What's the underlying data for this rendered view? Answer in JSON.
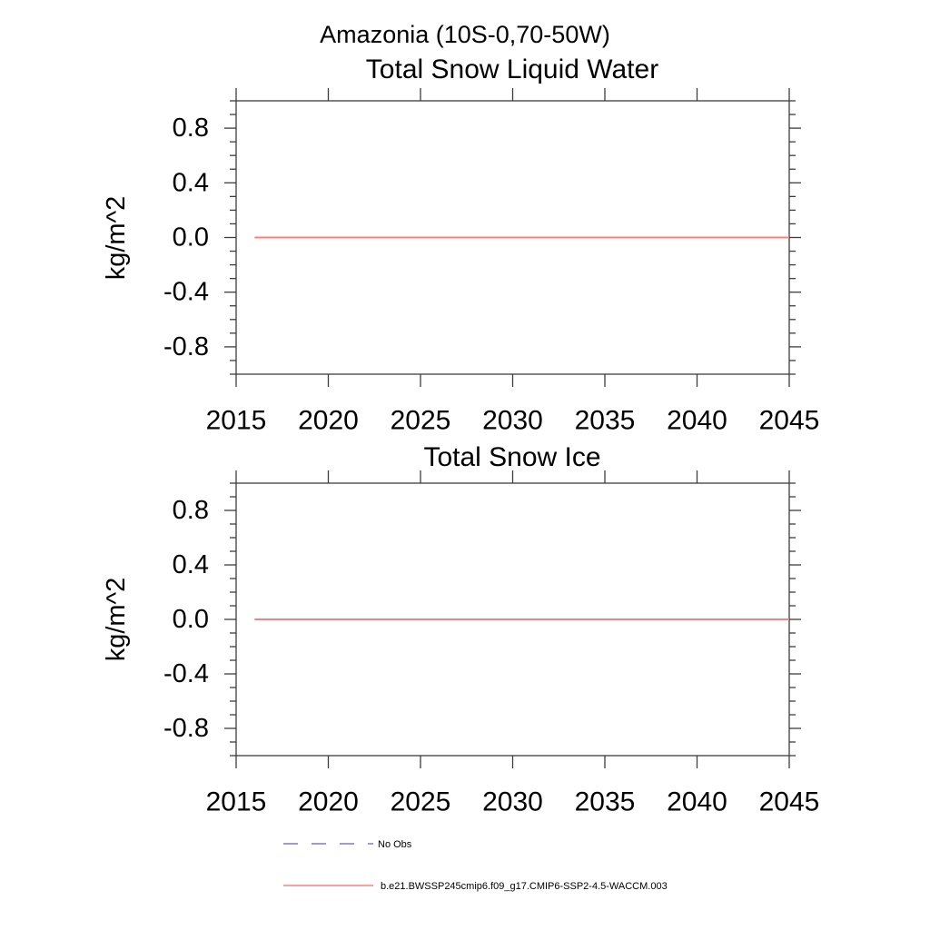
{
  "header": {
    "title": "Amazonia (10S-0,70-50W)"
  },
  "colors": {
    "series_red": "#f88080",
    "no_obs_blue": "#7878d2",
    "axis": "#3d3d3d",
    "text": "#000000",
    "background": "#ffffff"
  },
  "legend": {
    "position": "bottom-left",
    "items": [
      {
        "label": "No Obs",
        "style": "dashed",
        "color": "#7878d2"
      },
      {
        "label": "b.e21.BWSSP245cmip6.f09_g17.CMIP6-SSP2-4.5-WACCM.003",
        "style": "solid",
        "color": "#f88080"
      }
    ]
  },
  "chart_data": [
    {
      "type": "line",
      "title": "Total Snow Liquid Water",
      "xlabel": "",
      "ylabel": "kg/m^2",
      "xlim": [
        2015,
        2045
      ],
      "ylim": [
        -1.0,
        1.0
      ],
      "xticks": [
        2015,
        2020,
        2025,
        2030,
        2035,
        2040,
        2045
      ],
      "yticks": [
        -0.8,
        -0.4,
        0.0,
        0.4,
        0.8
      ],
      "ytick_labels": [
        "-0.8",
        "-0.4",
        "0.0",
        "0.4",
        "0.8"
      ],
      "yminor_step": 0.1,
      "grid": false,
      "legend_position": "none",
      "series": [
        {
          "name": "b.e21.BWSSP245cmip6.f09_g17.CMIP6-SSP2-4.5-WACCM.003",
          "color": "#f88080",
          "x": [
            2016,
            2045
          ],
          "y": [
            0.0,
            0.0
          ]
        }
      ]
    },
    {
      "type": "line",
      "title": "Total Snow Ice",
      "xlabel": "",
      "ylabel": "kg/m^2",
      "xlim": [
        2015,
        2045
      ],
      "ylim": [
        -1.0,
        1.0
      ],
      "xticks": [
        2015,
        2020,
        2025,
        2030,
        2035,
        2040,
        2045
      ],
      "yticks": [
        -0.8,
        -0.4,
        0.0,
        0.4,
        0.8
      ],
      "ytick_labels": [
        "-0.8",
        "-0.4",
        "0.0",
        "0.4",
        "0.8"
      ],
      "yminor_step": 0.1,
      "grid": false,
      "legend_position": "none",
      "series": [
        {
          "name": "b.e21.BWSSP245cmip6.f09_g17.CMIP6-SSP2-4.5-WACCM.003",
          "color": "#f88080",
          "x": [
            2016,
            2045
          ],
          "y": [
            0.0,
            0.0
          ]
        }
      ]
    }
  ]
}
